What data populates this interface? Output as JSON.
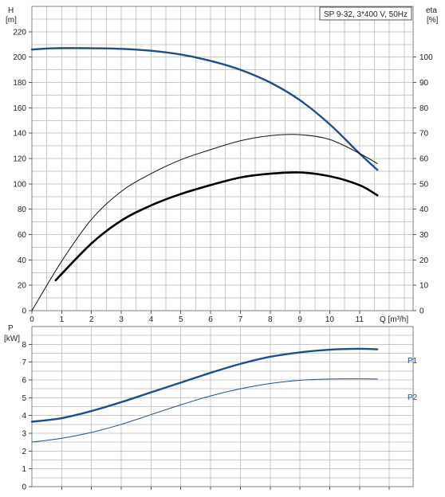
{
  "chart_data": [
    {
      "type": "line",
      "panel": "head-efficiency",
      "title": "SP 9-32, 3*400 V, 50Hz",
      "xlabel": "Q [m³/h]",
      "ylabel": "H",
      "ylabel_unit": "[m]",
      "y2label": "eta",
      "y2label_unit": "[%]",
      "xlim": [
        0,
        12.8
      ],
      "ylim": [
        0,
        240
      ],
      "y2lim": [
        0,
        120
      ],
      "x_ticks": [
        "0",
        "1",
        "2",
        "3",
        "4",
        "5",
        "6",
        "7",
        "8",
        "9",
        "10",
        "11"
      ],
      "y_ticks": [
        "0",
        "20",
        "40",
        "60",
        "80",
        "100",
        "120",
        "140",
        "160",
        "180",
        "200",
        "220"
      ],
      "y2_ticks": [
        "0",
        "10",
        "20",
        "30",
        "40",
        "50",
        "60",
        "70",
        "80",
        "90",
        "100"
      ],
      "grid": true,
      "series": [
        {
          "role": "head",
          "axis": "left",
          "color": "#1f4e8c",
          "width": 2.4,
          "x": [
            0,
            0.8,
            2,
            3,
            4,
            5,
            6,
            7,
            8,
            9,
            10,
            11,
            11.6
          ],
          "y": [
            206,
            207,
            207,
            206.5,
            205,
            202,
            197,
            190,
            180,
            166,
            147,
            124,
            111
          ]
        },
        {
          "role": "efficiency",
          "axis": "right",
          "color": "#111111",
          "width": 1,
          "x": [
            0,
            1,
            2,
            3,
            4,
            5,
            6,
            7,
            8,
            9,
            10,
            11,
            11.6
          ],
          "y": [
            0,
            19.5,
            36,
            47,
            54,
            59.5,
            63.5,
            67,
            69,
            69.4,
            67.5,
            62,
            58
          ]
        },
        {
          "role": "efficiency-2",
          "axis": "right",
          "color": "#000000",
          "width": 2.6,
          "x": [
            0.8,
            2,
            3,
            4,
            5,
            6,
            7,
            8,
            9,
            10,
            11,
            11.6
          ],
          "y": [
            12,
            26.5,
            35.5,
            41.5,
            46,
            49.5,
            52.5,
            54,
            54.5,
            53,
            49.5,
            45.5
          ]
        }
      ]
    },
    {
      "type": "line",
      "panel": "power",
      "xlabel": "",
      "ylabel": "P",
      "ylabel_unit": "[kW]",
      "xlim": [
        0,
        12.8
      ],
      "ylim": [
        0,
        9
      ],
      "y_ticks": [
        "0",
        "1",
        "2",
        "3",
        "4",
        "5",
        "6",
        "7",
        "8"
      ],
      "grid": true,
      "series": [
        {
          "name": "P1",
          "color": "#1f4e8c",
          "width": 2.4,
          "x": [
            0,
            1,
            2,
            3,
            4,
            5,
            6,
            7,
            8,
            9,
            10,
            11,
            11.6
          ],
          "y": [
            3.65,
            3.85,
            4.25,
            4.75,
            5.3,
            5.85,
            6.4,
            6.9,
            7.3,
            7.55,
            7.7,
            7.75,
            7.72
          ]
        },
        {
          "name": "P2",
          "color": "#1f4e8c",
          "width": 1,
          "x": [
            0,
            1,
            2,
            3,
            4,
            5,
            6,
            7,
            8,
            9,
            10,
            11,
            11.6
          ],
          "y": [
            2.5,
            2.72,
            3.05,
            3.5,
            4.05,
            4.6,
            5.1,
            5.5,
            5.8,
            5.98,
            6.05,
            6.06,
            6.05
          ]
        }
      ]
    }
  ]
}
